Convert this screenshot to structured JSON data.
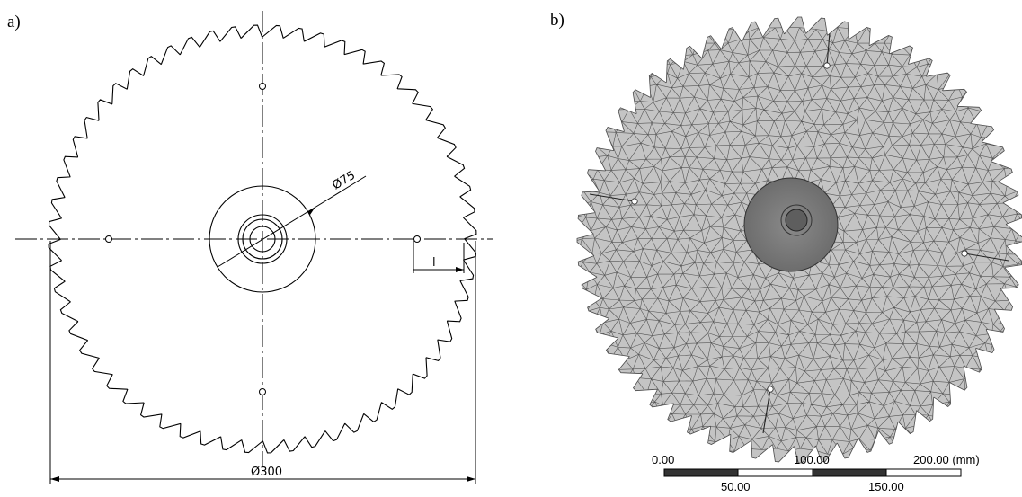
{
  "panels": {
    "a": {
      "label": "a)"
    },
    "b": {
      "label": "b)"
    }
  },
  "drawing": {
    "outer_diameter": "Ø300",
    "hub_diameter": "Ø75",
    "tooth_dim": "l",
    "teeth_count": 60
  },
  "mesh": {
    "scale_bar": {
      "top_labels": [
        "0.00",
        "100.00",
        "200.00 (mm)"
      ],
      "bottom_labels": [
        "50.00",
        "150.00"
      ]
    }
  }
}
